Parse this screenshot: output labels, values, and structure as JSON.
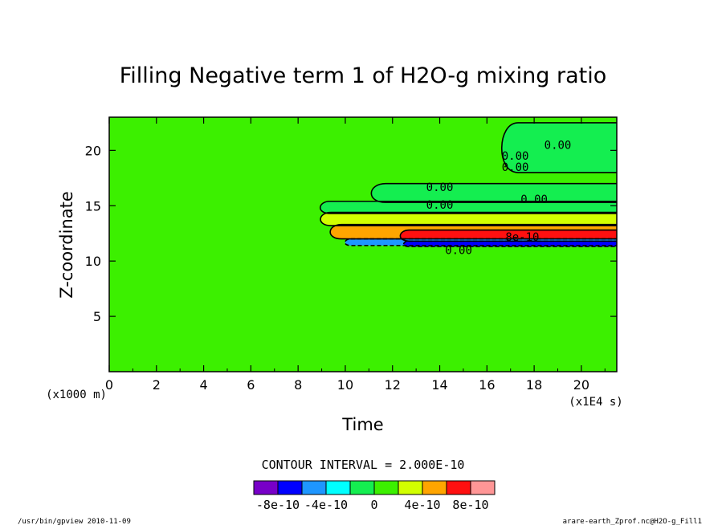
{
  "chart_data": {
    "type": "heatmap",
    "title": "Filling Negative term 1 of H2O-g mixing ratio",
    "xlabel": "Time",
    "ylabel": "Z-coordinate",
    "x_unit": "(x1E4 s)",
    "y_unit": "(x1000 m)",
    "xlim": [
      0,
      21.5
    ],
    "ylim": [
      0,
      23
    ],
    "x_ticks": [
      0,
      2,
      4,
      6,
      8,
      10,
      12,
      14,
      16,
      18,
      20
    ],
    "y_ticks": [
      5,
      10,
      15,
      20
    ],
    "background_level": 0,
    "contour_interval": "CONTOUR INTERVAL = 2.000E-10",
    "contour_labels": [
      {
        "text": "0.00",
        "x": 19.0,
        "y": 20.5
      },
      {
        "text": "0.00",
        "x": 17.2,
        "y": 19.5
      },
      {
        "text": "0.00",
        "x": 17.2,
        "y": 18.5
      },
      {
        "text": "0.00",
        "x": 14.0,
        "y": 16.7
      },
      {
        "text": "0.00",
        "x": 18.0,
        "y": 15.6
      },
      {
        "text": "0.00",
        "x": 14.0,
        "y": 15.1
      },
      {
        "text": "8e-10",
        "x": 17.5,
        "y": 12.2
      },
      {
        "text": "0.00",
        "x": 14.8,
        "y": 11.0
      }
    ],
    "layers": [
      {
        "level": 1,
        "color": "#14ee50",
        "x_start": 16.5,
        "y_bottom": 18.0,
        "y_top": 22.5
      },
      {
        "level": 1,
        "color": "#14ee50",
        "x_start": 11.0,
        "y_bottom": 15.3,
        "y_top": 17.0
      },
      {
        "level": 1,
        "color": "#14ee50",
        "x_start": 8.9,
        "y_bottom": 14.3,
        "y_top": 15.4
      },
      {
        "level": 3,
        "color": "#d2ff00",
        "x_start": 8.9,
        "y_bottom": 13.2,
        "y_top": 14.4
      },
      {
        "level": 4,
        "color": "#ffa500",
        "x_start": 9.3,
        "y_bottom": 12.0,
        "y_top": 13.3
      },
      {
        "level": 5,
        "color": "#ff1010",
        "x_start": 12.3,
        "y_bottom": 11.8,
        "y_top": 12.8
      },
      {
        "level": -1,
        "color": "#1e96ff",
        "x_start": 10.0,
        "y_bottom": 11.4,
        "y_top": 12.0
      },
      {
        "level": -2,
        "color": "#0000ff",
        "x_start": 12.5,
        "y_bottom": 11.3,
        "y_top": 11.8
      }
    ],
    "colorbar": {
      "colors": [
        "#7800c8",
        "#0000ff",
        "#1e96ff",
        "#00ffff",
        "#14ee50",
        "#3cf000",
        "#d2ff00",
        "#ffa500",
        "#ff1010",
        "#ff9696"
      ],
      "labels": [
        "-8e-10",
        "-4e-10",
        "0",
        "4e-10",
        "8e-10"
      ]
    }
  },
  "footer": {
    "left": "/usr/bin/gpview  2010-11-09",
    "right": "arare-earth_Zprof.nc@H2O-g_Fill1"
  }
}
